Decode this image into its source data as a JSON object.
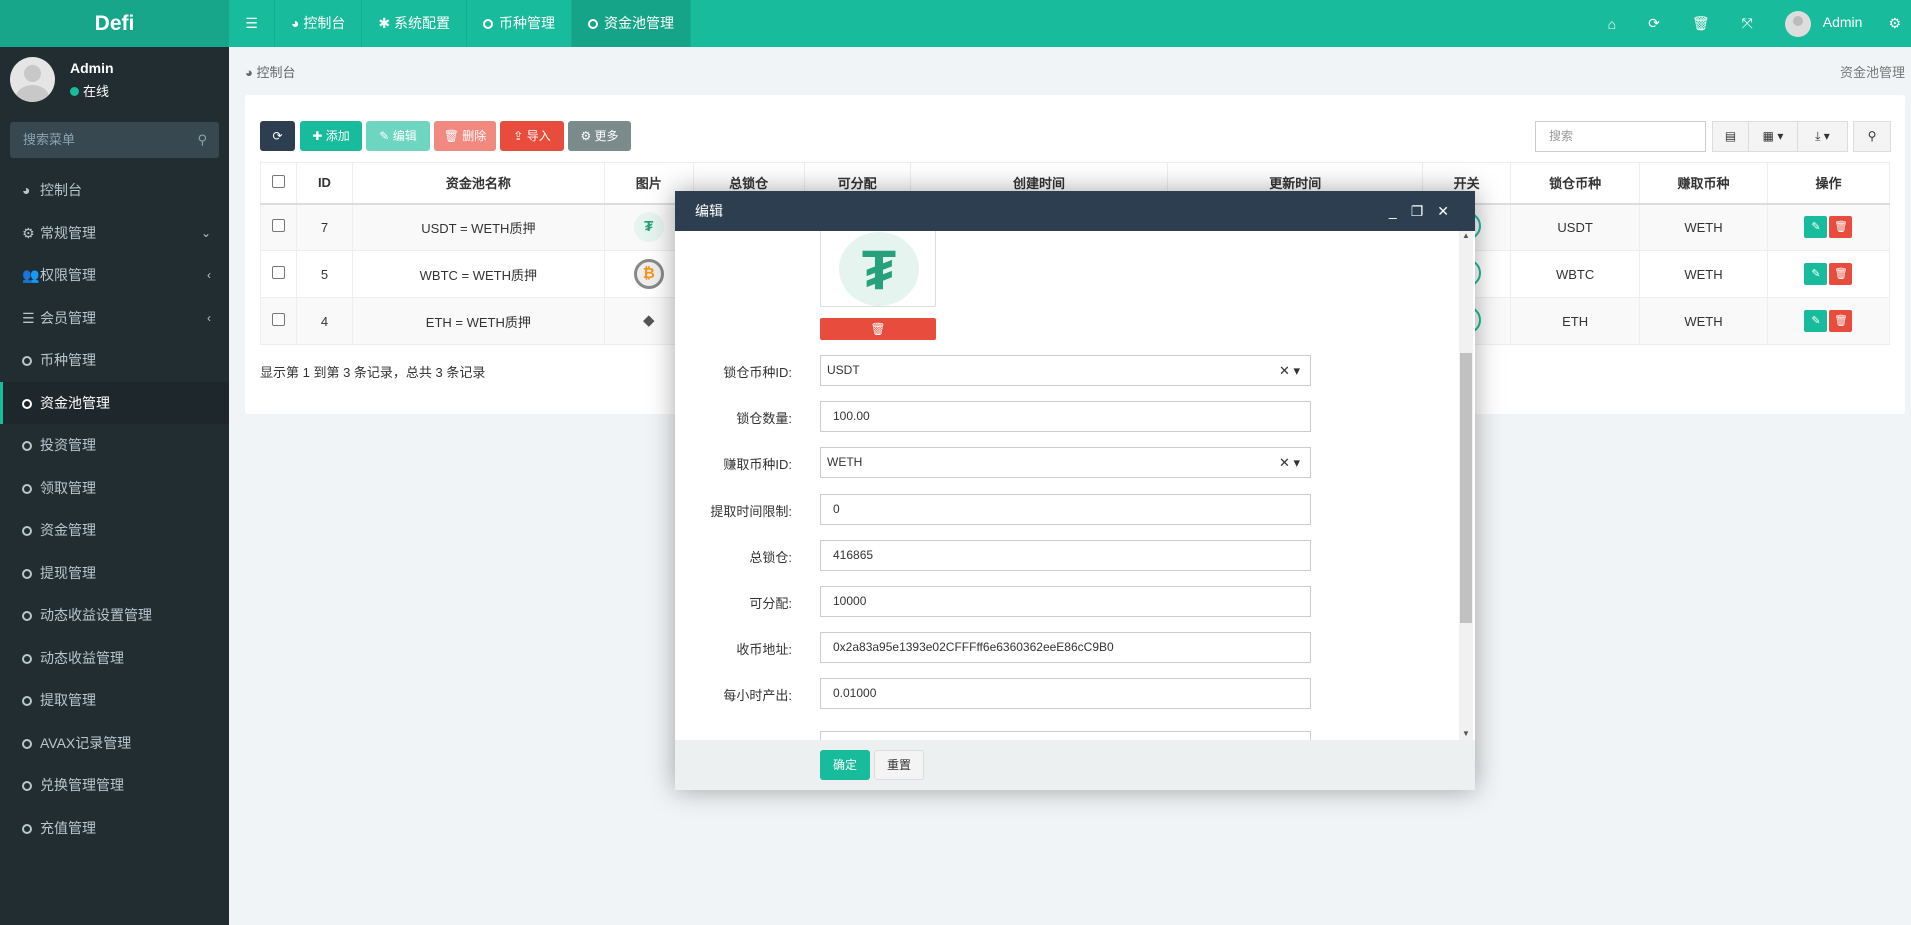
{
  "app": {
    "logo": "Defi"
  },
  "nav": {
    "menu_icon": "☰",
    "items": [
      {
        "label": "控制台",
        "icon": "dashboard-icon"
      },
      {
        "label": "系统配置",
        "icon": "gear-icon"
      },
      {
        "label": "币种管理",
        "icon": "circle-icon"
      },
      {
        "label": "资金池管理",
        "icon": "circle-icon",
        "active": true
      }
    ],
    "right": {
      "user": "Admin",
      "icons": [
        "home-icon",
        "refresh-icon",
        "trash-icon",
        "fullscreen-icon",
        "settings-icon"
      ]
    }
  },
  "sidebar": {
    "user": {
      "name": "Admin",
      "status": "在线"
    },
    "search_placeholder": "搜索菜单",
    "items": [
      {
        "label": "控制台"
      },
      {
        "label": "常规管理"
      },
      {
        "label": "权限管理"
      },
      {
        "label": "会员管理"
      },
      {
        "label": "币种管理"
      },
      {
        "label": "资金池管理",
        "active": true
      },
      {
        "label": "投资管理"
      },
      {
        "label": "领取管理"
      },
      {
        "label": "资金管理"
      },
      {
        "label": "提现管理"
      },
      {
        "label": "动态收益设置管理"
      },
      {
        "label": "动态收益管理"
      },
      {
        "label": "提取管理"
      },
      {
        "label": "AVAX记录管理"
      },
      {
        "label": "兑换管理管理"
      },
      {
        "label": "充值管理"
      }
    ]
  },
  "breadcrumb": {
    "left": "控制台",
    "right": "资金池管理"
  },
  "toolbar": {
    "add": "添加",
    "edit": "编辑",
    "delete": "删除",
    "import": "导入",
    "more": "更多",
    "search_placeholder": "搜索"
  },
  "table": {
    "headers": [
      "ID",
      "资金池名称",
      "图片",
      "总锁仓",
      "可分配",
      "创建时间",
      "更新时间",
      "开关",
      "锁仓币种",
      "赚取币种",
      "操作"
    ],
    "rows": [
      {
        "id": "7",
        "name": "USDT = WETH质押",
        "coin": "USDT",
        "lock": "USDT",
        "earn": "WETH"
      },
      {
        "id": "5",
        "name": "WBTC = WETH质押",
        "coin": "WBTC",
        "lock": "WBTC",
        "earn": "WETH"
      },
      {
        "id": "4",
        "name": "ETH = WETH质押",
        "coin": "ETH",
        "lock": "ETH",
        "earn": "WETH"
      }
    ],
    "footer": "显示第 1 到第 3 条记录，总共 3 条记录"
  },
  "modal": {
    "title": "编辑",
    "fields": [
      {
        "label": "锁仓币种ID:",
        "value": "USDT",
        "select": true
      },
      {
        "label": "锁仓数量:",
        "value": "100.00"
      },
      {
        "label": "赚取币种ID:",
        "value": "WETH",
        "select": true
      },
      {
        "label": "提取时间限制:",
        "value": "0"
      },
      {
        "label": "总锁仓:",
        "value": "416865"
      },
      {
        "label": "可分配:",
        "value": "10000"
      },
      {
        "label": "收币地址:",
        "value": "0x2a83a95e1393e02CFFFff6e6360362eeE86cC9B0"
      },
      {
        "label": "每小时产出:",
        "value": "0.01000"
      }
    ],
    "confirm": "确定",
    "reset": "重置"
  },
  "colors": {
    "primary": "#18bc9c",
    "dark": "#2c3e50",
    "danger": "#e74c3c",
    "sidebar": "#222d32"
  }
}
